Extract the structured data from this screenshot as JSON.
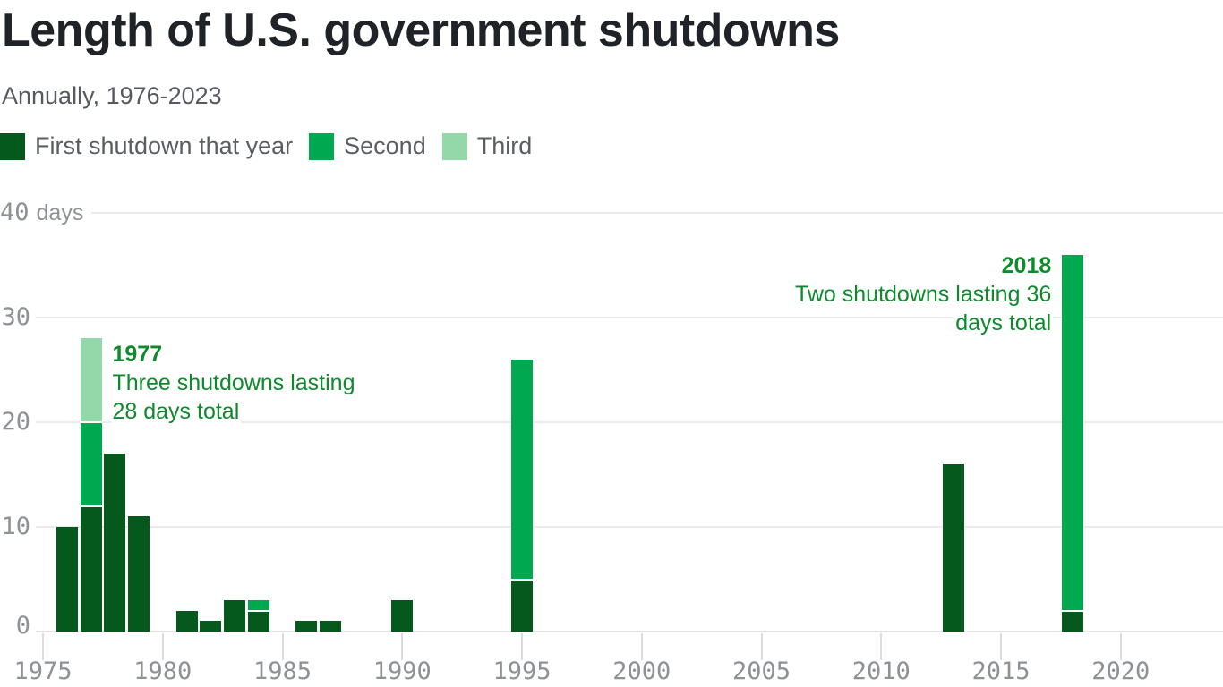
{
  "page": {
    "title": "Length of U.S. government shutdowns",
    "subtitle": "Annually, 1976-2023"
  },
  "legend": {
    "items": [
      {
        "label": "First shutdown that year",
        "color": "#05591d"
      },
      {
        "label": "Second",
        "color": "#00a84f"
      },
      {
        "label": "Third",
        "color": "#94d8a9"
      }
    ]
  },
  "axis": {
    "y_unit": "days",
    "y_ticks": [
      "0",
      "10",
      "20",
      "30",
      "40"
    ],
    "x_ticks": [
      "1975",
      "1980",
      "1985",
      "1990",
      "1995",
      "2000",
      "2005",
      "2010",
      "2015",
      "2020"
    ]
  },
  "colors": {
    "series": [
      "#05591d",
      "#00a84f",
      "#94d8a9"
    ],
    "annotation_text": "#0e8a2d",
    "axis_text": "#8e9196",
    "gridline": "#eaecec",
    "baseline": "#e3e5e5",
    "tick": "#dbdddd",
    "title_text": "#1f2327",
    "subtitle_text": "#56595f",
    "legend_text": "#5a5e63"
  },
  "chart_data": {
    "type": "bar",
    "stacked": true,
    "title": "Length of U.S. government shutdowns",
    "subtitle": "Annually, 1976-2023",
    "ylabel": "days",
    "ylim": [
      0,
      40
    ],
    "yticks": [
      0,
      10,
      20,
      30,
      40
    ],
    "xticks": [
      1975,
      1980,
      1985,
      1990,
      1995,
      2000,
      2005,
      2010,
      2015,
      2020
    ],
    "x_range": [
      1975,
      2023
    ],
    "grid": true,
    "legend_position": "top",
    "series_names": [
      "First shutdown that year",
      "Second",
      "Third"
    ],
    "bars": [
      {
        "year": 1976,
        "values": [
          10
        ]
      },
      {
        "year": 1977,
        "values": [
          12,
          8,
          8
        ]
      },
      {
        "year": 1978,
        "values": [
          17
        ]
      },
      {
        "year": 1979,
        "values": [
          11
        ]
      },
      {
        "year": 1981,
        "values": [
          2
        ]
      },
      {
        "year": 1982,
        "values": [
          1
        ]
      },
      {
        "year": 1983,
        "values": [
          3
        ]
      },
      {
        "year": 1984,
        "values": [
          2,
          1
        ]
      },
      {
        "year": 1986,
        "values": [
          1
        ]
      },
      {
        "year": 1987,
        "values": [
          1
        ]
      },
      {
        "year": 1990,
        "values": [
          3
        ]
      },
      {
        "year": 1995,
        "values": [
          5,
          21
        ]
      },
      {
        "year": 2013,
        "values": [
          16
        ]
      },
      {
        "year": 2018,
        "values": [
          2,
          34
        ]
      }
    ],
    "annotations": [
      {
        "year": 1977,
        "total": 28,
        "align": "left",
        "year_label": "1977",
        "lines": [
          "Three shutdowns lasting",
          "28 days total"
        ]
      },
      {
        "year": 2018,
        "total": 36,
        "align": "right",
        "year_label": "2018",
        "lines": [
          "Two shutdowns lasting 36",
          "days total"
        ]
      }
    ]
  }
}
